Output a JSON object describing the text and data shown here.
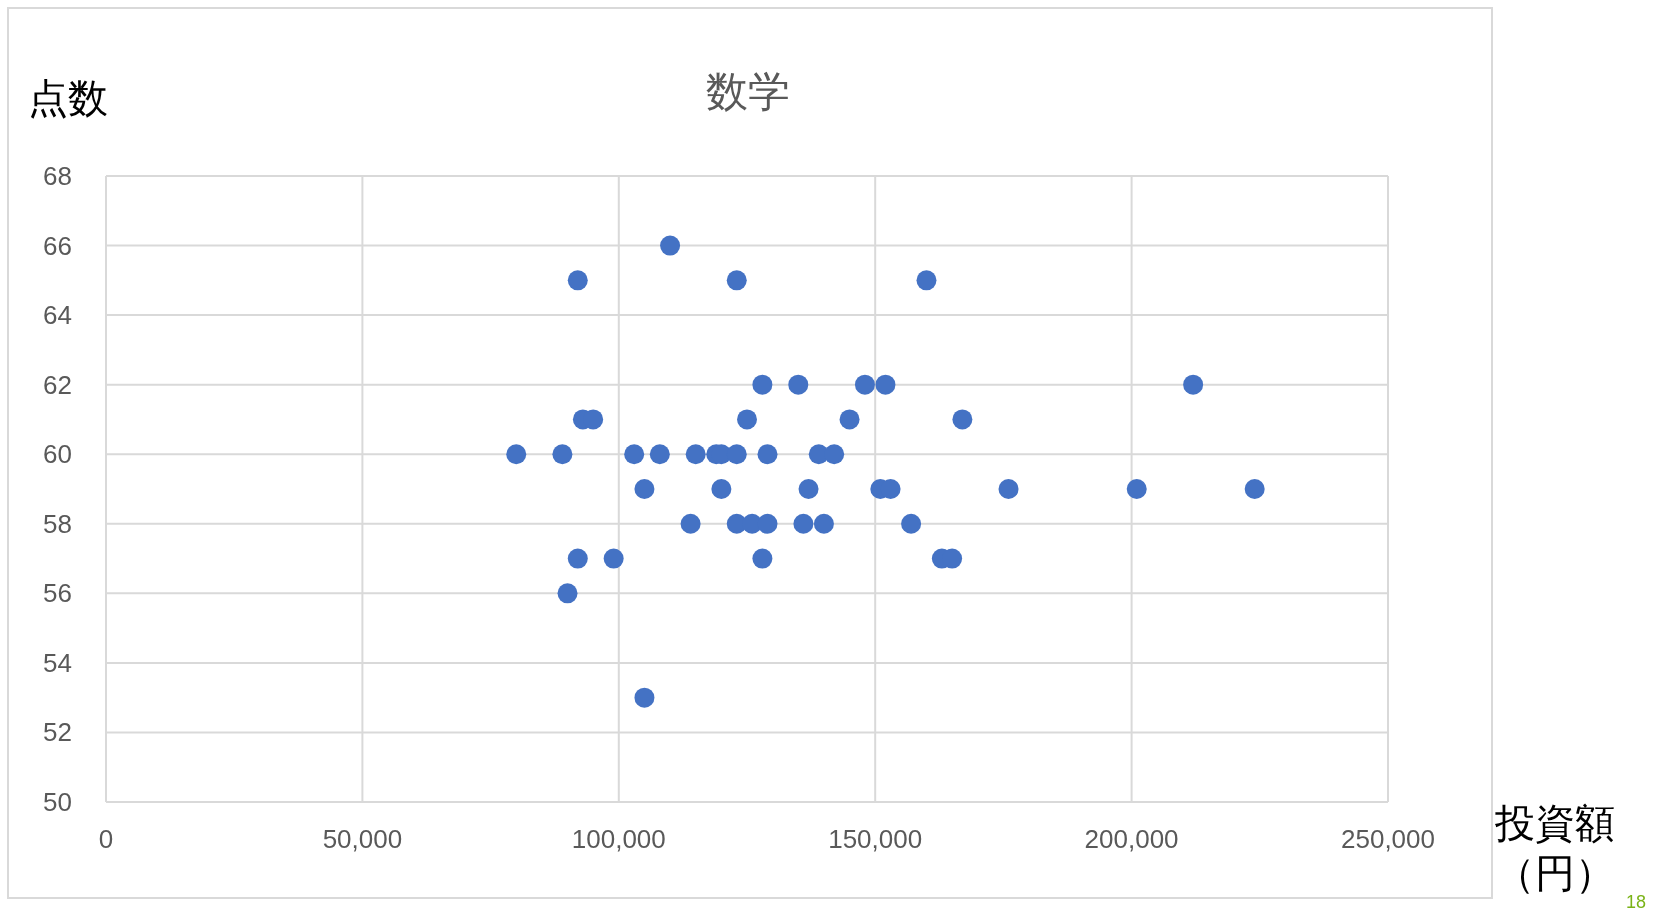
{
  "chart_data": {
    "type": "scatter",
    "title": "数学",
    "ylabel": "点数",
    "xlabel": "投資額（円）",
    "x": [
      80000,
      89000,
      92000,
      93000,
      95000,
      92000,
      90000,
      99000,
      103000,
      105000,
      105000,
      108000,
      110000,
      114000,
      115000,
      119000,
      120000,
      120000,
      123000,
      123000,
      123000,
      125000,
      126000,
      128000,
      128000,
      129000,
      129000,
      135000,
      136000,
      137000,
      139000,
      140000,
      142000,
      145000,
      148000,
      151000,
      152000,
      153000,
      157000,
      160000,
      163000,
      165000,
      167000,
      176000,
      201000,
      212000,
      224000
    ],
    "values": [
      60,
      60,
      65,
      61,
      61,
      57,
      56,
      57,
      60,
      59,
      53,
      60,
      66,
      58,
      60,
      60,
      60,
      59,
      65,
      60,
      58,
      61,
      58,
      62,
      57,
      60,
      58,
      62,
      58,
      59,
      60,
      58,
      60,
      61,
      62,
      59,
      62,
      59,
      58,
      65,
      57,
      57,
      61,
      59,
      59,
      62,
      59
    ],
    "color": "#4472c4",
    "marker": "circle",
    "grid": true,
    "xlim": [
      0,
      250000
    ],
    "xticks": [
      0,
      {
        "value": 50000,
        "label": "50,000"
      },
      {
        "value": 100000,
        "label": "100,000"
      },
      {
        "value": 150000,
        "label": "150,000"
      },
      {
        "value": 200000,
        "label": "200,000"
      },
      {
        "value": 250000,
        "label": "250,000"
      }
    ],
    "ylim": [
      50,
      68
    ],
    "yticks": [
      50,
      52,
      54,
      56,
      58,
      60,
      62,
      64,
      66,
      68
    ],
    "annotations": [
      "18"
    ]
  }
}
